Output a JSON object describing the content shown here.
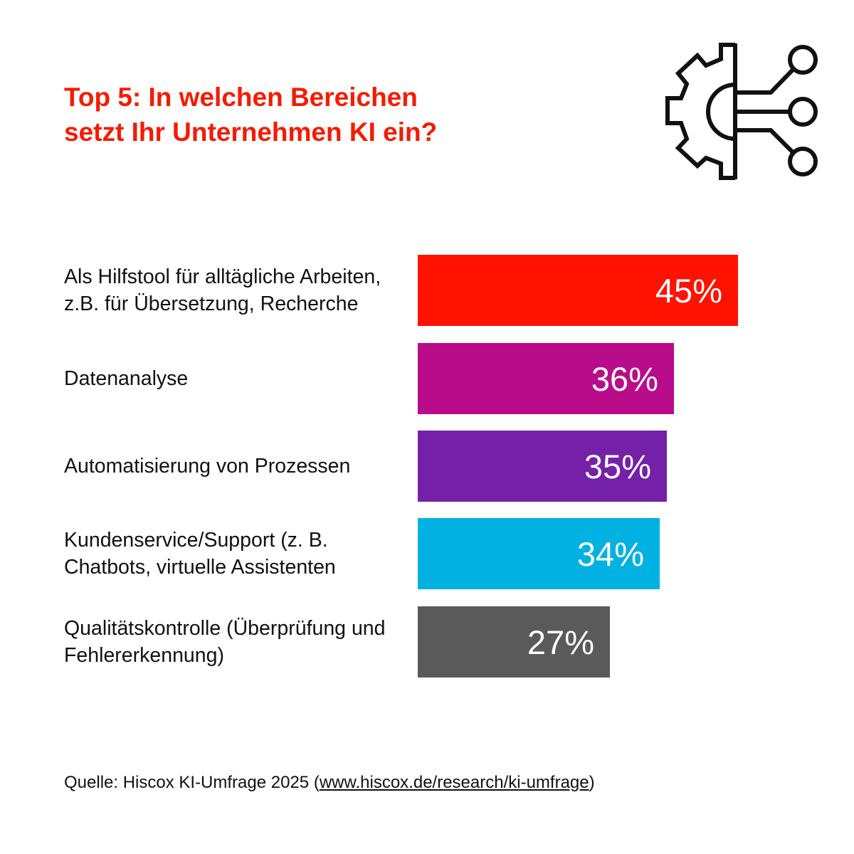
{
  "chart_data": {
    "type": "bar",
    "orientation": "horizontal",
    "title": [
      "Top 5: In welchen Bereichen",
      "setzt Ihr Unternehmen KI ein?"
    ],
    "categories": [
      "Als Hilfstool für alltägliche Arbeiten, z.B. für Übersetzung, Recherche",
      "Datenanalyse",
      "Automatisierung von Prozessen",
      "Kundenservice/Support (z. B. Chatbots, virtuelle Assistenten",
      "Qualitätskontrolle (Überprüfung und Fehlererkennung)"
    ],
    "values": [
      45,
      36,
      35,
      34,
      27
    ],
    "value_labels": [
      "45%",
      "36%",
      "35%",
      "34%",
      "27%"
    ],
    "colors": [
      "#ff1200",
      "#b80c8a",
      "#7420a8",
      "#00b1e1",
      "#5a5a5a"
    ],
    "unit": "%",
    "grid": false,
    "axes_visible": false
  },
  "colors": {
    "title": "#f51a00",
    "text": "#111111",
    "icon": "#111111"
  },
  "icon": "gear-circuit-ai-icon",
  "source": {
    "prefix": "Quelle: Hiscox KI-Umfrage 2025 (",
    "link": "www.hiscox.de/research/ki-umfrage",
    "suffix": ")"
  }
}
